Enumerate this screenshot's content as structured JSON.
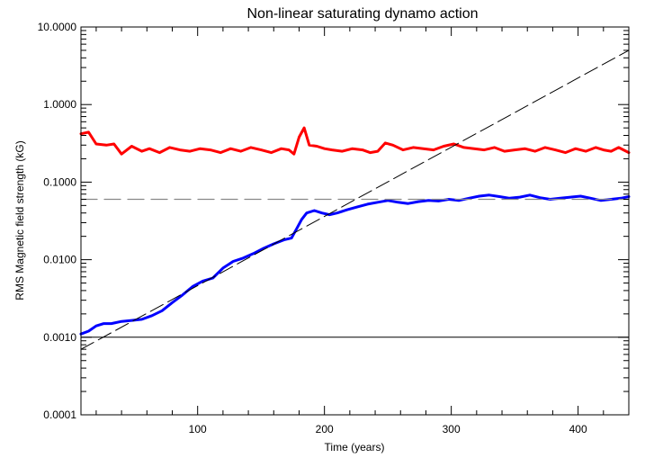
{
  "chart_data": {
    "type": "line",
    "title": "Non-linear saturating dynamo action",
    "xlabel": "Time (years)",
    "ylabel": "RMS Magnetic field strength (kG)",
    "xlim": [
      8,
      440
    ],
    "ylim": [
      0.0001,
      10
    ],
    "yscale": "log",
    "x_ticks": [
      100,
      200,
      300,
      400
    ],
    "x_tick_labels": [
      "100",
      "200",
      "300",
      "400"
    ],
    "y_ticks": [
      0.0001,
      0.001,
      0.01,
      0.1,
      1,
      10
    ],
    "y_tick_labels": [
      "0.0001",
      "0.0010",
      "0.0100",
      "0.1000",
      "1.0000",
      "10.0000"
    ],
    "grid": false,
    "colors": {
      "red": "#ff0000",
      "blue": "#0000ff",
      "black": "#000000",
      "gray": "#888888"
    },
    "series": [
      {
        "color": "#ff0000",
        "style": "solid-thick",
        "x": [
          8,
          14,
          20,
          28,
          34,
          40,
          48,
          56,
          62,
          70,
          78,
          86,
          94,
          102,
          110,
          118,
          126,
          134,
          142,
          150,
          158,
          166,
          172,
          176,
          180,
          184,
          188,
          194,
          200,
          206,
          214,
          222,
          230,
          236,
          242,
          248,
          254,
          262,
          270,
          278,
          286,
          294,
          302,
          310,
          318,
          326,
          334,
          342,
          350,
          358,
          366,
          374,
          382,
          390,
          398,
          406,
          414,
          420,
          426,
          432,
          440
        ],
        "y": [
          0.42,
          0.44,
          0.31,
          0.3,
          0.31,
          0.23,
          0.29,
          0.25,
          0.27,
          0.24,
          0.28,
          0.26,
          0.25,
          0.27,
          0.26,
          0.24,
          0.27,
          0.25,
          0.28,
          0.26,
          0.24,
          0.27,
          0.26,
          0.23,
          0.38,
          0.5,
          0.3,
          0.29,
          0.27,
          0.26,
          0.25,
          0.27,
          0.26,
          0.24,
          0.25,
          0.32,
          0.3,
          0.26,
          0.28,
          0.27,
          0.26,
          0.29,
          0.31,
          0.28,
          0.27,
          0.26,
          0.28,
          0.25,
          0.26,
          0.27,
          0.25,
          0.28,
          0.26,
          0.24,
          0.27,
          0.25,
          0.28,
          0.26,
          0.25,
          0.28,
          0.24
        ]
      },
      {
        "color": "#0000ff",
        "style": "solid-thick",
        "x": [
          8,
          14,
          20,
          26,
          32,
          40,
          48,
          56,
          64,
          72,
          80,
          88,
          96,
          104,
          112,
          120,
          128,
          136,
          144,
          152,
          160,
          168,
          174,
          178,
          182,
          186,
          192,
          198,
          204,
          210,
          218,
          226,
          234,
          242,
          250,
          258,
          266,
          274,
          282,
          290,
          298,
          306,
          314,
          322,
          330,
          338,
          346,
          354,
          362,
          370,
          378,
          386,
          394,
          402,
          410,
          418,
          426,
          434,
          440
        ],
        "y": [
          0.0011,
          0.0012,
          0.0014,
          0.0015,
          0.0015,
          0.0016,
          0.00165,
          0.0017,
          0.0019,
          0.0022,
          0.0028,
          0.0035,
          0.0045,
          0.0053,
          0.0058,
          0.0078,
          0.0095,
          0.0105,
          0.012,
          0.014,
          0.016,
          0.018,
          0.019,
          0.025,
          0.033,
          0.04,
          0.043,
          0.04,
          0.038,
          0.04,
          0.044,
          0.048,
          0.052,
          0.055,
          0.058,
          0.055,
          0.053,
          0.056,
          0.058,
          0.057,
          0.06,
          0.058,
          0.062,
          0.066,
          0.068,
          0.065,
          0.062,
          0.064,
          0.068,
          0.063,
          0.06,
          0.062,
          0.064,
          0.066,
          0.062,
          0.058,
          0.06,
          0.062,
          0.065
        ]
      },
      {
        "color": "#000000",
        "style": "long-dash",
        "x": [
          8,
          440
        ],
        "y": [
          0.0007,
          5.0
        ]
      },
      {
        "color": "#888888",
        "style": "dashed",
        "x": [
          8,
          440
        ],
        "y": [
          0.06,
          0.06
        ]
      },
      {
        "color": "#000000",
        "style": "thin-solid",
        "x": [
          8,
          440
        ],
        "y": [
          0.001,
          0.001
        ]
      }
    ]
  }
}
